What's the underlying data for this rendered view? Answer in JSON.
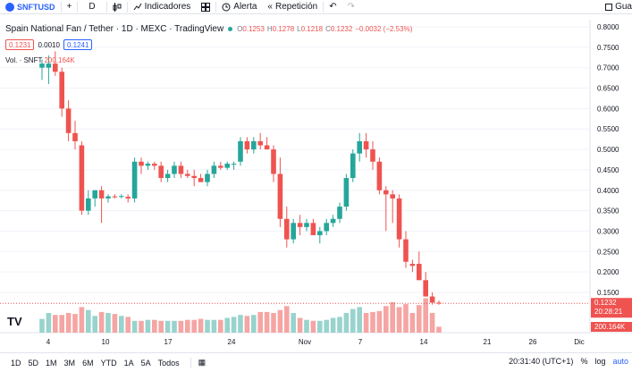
{
  "toolbar": {
    "symbol": "SNFTUSD",
    "interval": "D",
    "indicators_label": "Indicadores",
    "alert_label": "Alerta",
    "replay_label": "Repetición",
    "save_label": "Gua"
  },
  "legend": {
    "title": "Spain National Fan / Tether · 1D · MEXC · TradingView",
    "open_key": "O",
    "open": "0.1253",
    "high_key": "H",
    "high": "0.1278",
    "low_key": "L",
    "low": "0.1218",
    "close_key": "C",
    "close": "0.1232",
    "change": "−0.0032 (−2.53%)",
    "bid": "0.1231",
    "spread": "0.0010",
    "ask": "0.1241",
    "vol_label": "Vol. · SNFT",
    "vol_value": "200.164K"
  },
  "price_axis": {
    "ticks": [
      "0.8000",
      "0.7500",
      "0.7000",
      "0.6500",
      "0.6000",
      "0.5500",
      "0.5000",
      "0.4500",
      "0.4000",
      "0.3500",
      "0.3000",
      "0.2500",
      "0.2000",
      "0.1500"
    ],
    "last_price": "0.1232",
    "countdown": "20:28:21",
    "volume_badge": "200.164K"
  },
  "time_axis": {
    "labels": [
      "4",
      "10",
      "17",
      "24",
      "Nov",
      "7",
      "14",
      "21",
      "26",
      "Dic"
    ]
  },
  "bottombar": {
    "timeframes": [
      "1D",
      "5D",
      "1M",
      "3M",
      "6M",
      "YTD",
      "1A",
      "5A",
      "Todos"
    ],
    "clock": "20:31:40 (UTC+1)",
    "percent": "%",
    "log": "log",
    "auto": "auto"
  },
  "colors": {
    "up": "#26a69a",
    "down": "#ef5350",
    "vol_up": "#98d3cd",
    "vol_down": "#f5a5a3",
    "accent": "#2962ff"
  },
  "chart_data": {
    "type": "candlestick",
    "ylim": [
      0.12,
      0.8
    ],
    "candles": [
      {
        "o": 0.7,
        "h": 0.72,
        "l": 0.67,
        "c": 0.71
      },
      {
        "o": 0.7,
        "h": 0.73,
        "l": 0.66,
        "c": 0.71
      },
      {
        "o": 0.71,
        "h": 0.74,
        "l": 0.68,
        "c": 0.69
      },
      {
        "o": 0.69,
        "h": 0.7,
        "l": 0.58,
        "c": 0.6
      },
      {
        "o": 0.6,
        "h": 0.62,
        "l": 0.52,
        "c": 0.54
      },
      {
        "o": 0.54,
        "h": 0.57,
        "l": 0.5,
        "c": 0.52
      },
      {
        "o": 0.51,
        "h": 0.52,
        "l": 0.34,
        "c": 0.35
      },
      {
        "o": 0.35,
        "h": 0.4,
        "l": 0.34,
        "c": 0.38
      },
      {
        "o": 0.38,
        "h": 0.4,
        "l": 0.36,
        "c": 0.4
      },
      {
        "o": 0.4,
        "h": 0.41,
        "l": 0.32,
        "c": 0.38
      },
      {
        "o": 0.38,
        "h": 0.39,
        "l": 0.37,
        "c": 0.385
      },
      {
        "o": 0.385,
        "h": 0.39,
        "l": 0.38,
        "c": 0.384
      },
      {
        "o": 0.384,
        "h": 0.39,
        "l": 0.38,
        "c": 0.386
      },
      {
        "o": 0.384,
        "h": 0.39,
        "l": 0.37,
        "c": 0.38
      },
      {
        "o": 0.38,
        "h": 0.48,
        "l": 0.37,
        "c": 0.47
      },
      {
        "o": 0.47,
        "h": 0.48,
        "l": 0.44,
        "c": 0.46
      },
      {
        "o": 0.46,
        "h": 0.47,
        "l": 0.45,
        "c": 0.465
      },
      {
        "o": 0.465,
        "h": 0.47,
        "l": 0.45,
        "c": 0.46
      },
      {
        "o": 0.46,
        "h": 0.47,
        "l": 0.42,
        "c": 0.43
      },
      {
        "o": 0.43,
        "h": 0.45,
        "l": 0.42,
        "c": 0.44
      },
      {
        "o": 0.44,
        "h": 0.47,
        "l": 0.43,
        "c": 0.46
      },
      {
        "o": 0.46,
        "h": 0.47,
        "l": 0.43,
        "c": 0.44
      },
      {
        "o": 0.44,
        "h": 0.45,
        "l": 0.43,
        "c": 0.435
      },
      {
        "o": 0.435,
        "h": 0.45,
        "l": 0.41,
        "c": 0.43
      },
      {
        "o": 0.43,
        "h": 0.44,
        "l": 0.42,
        "c": 0.42
      },
      {
        "o": 0.42,
        "h": 0.45,
        "l": 0.41,
        "c": 0.44
      },
      {
        "o": 0.44,
        "h": 0.47,
        "l": 0.43,
        "c": 0.46
      },
      {
        "o": 0.46,
        "h": 0.47,
        "l": 0.45,
        "c": 0.455
      },
      {
        "o": 0.455,
        "h": 0.47,
        "l": 0.45,
        "c": 0.465
      },
      {
        "o": 0.465,
        "h": 0.47,
        "l": 0.45,
        "c": 0.465
      },
      {
        "o": 0.47,
        "h": 0.53,
        "l": 0.46,
        "c": 0.52
      },
      {
        "o": 0.52,
        "h": 0.53,
        "l": 0.49,
        "c": 0.5
      },
      {
        "o": 0.5,
        "h": 0.53,
        "l": 0.49,
        "c": 0.52
      },
      {
        "o": 0.52,
        "h": 0.54,
        "l": 0.5,
        "c": 0.51
      },
      {
        "o": 0.51,
        "h": 0.53,
        "l": 0.5,
        "c": 0.5
      },
      {
        "o": 0.5,
        "h": 0.51,
        "l": 0.42,
        "c": 0.44
      },
      {
        "o": 0.44,
        "h": 0.48,
        "l": 0.31,
        "c": 0.33
      },
      {
        "o": 0.33,
        "h": 0.36,
        "l": 0.26,
        "c": 0.28
      },
      {
        "o": 0.28,
        "h": 0.33,
        "l": 0.27,
        "c": 0.32
      },
      {
        "o": 0.32,
        "h": 0.34,
        "l": 0.29,
        "c": 0.31
      },
      {
        "o": 0.31,
        "h": 0.33,
        "l": 0.3,
        "c": 0.32
      },
      {
        "o": 0.32,
        "h": 0.33,
        "l": 0.29,
        "c": 0.29
      },
      {
        "o": 0.29,
        "h": 0.31,
        "l": 0.27,
        "c": 0.3
      },
      {
        "o": 0.3,
        "h": 0.33,
        "l": 0.29,
        "c": 0.32
      },
      {
        "o": 0.32,
        "h": 0.34,
        "l": 0.31,
        "c": 0.33
      },
      {
        "o": 0.33,
        "h": 0.37,
        "l": 0.32,
        "c": 0.36
      },
      {
        "o": 0.36,
        "h": 0.44,
        "l": 0.35,
        "c": 0.43
      },
      {
        "o": 0.43,
        "h": 0.5,
        "l": 0.42,
        "c": 0.49
      },
      {
        "o": 0.49,
        "h": 0.54,
        "l": 0.47,
        "c": 0.52
      },
      {
        "o": 0.52,
        "h": 0.54,
        "l": 0.48,
        "c": 0.5
      },
      {
        "o": 0.5,
        "h": 0.52,
        "l": 0.45,
        "c": 0.47
      },
      {
        "o": 0.47,
        "h": 0.48,
        "l": 0.39,
        "c": 0.4
      },
      {
        "o": 0.4,
        "h": 0.41,
        "l": 0.3,
        "c": 0.39
      },
      {
        "o": 0.39,
        "h": 0.4,
        "l": 0.32,
        "c": 0.38
      },
      {
        "o": 0.38,
        "h": 0.39,
        "l": 0.26,
        "c": 0.28
      },
      {
        "o": 0.28,
        "h": 0.3,
        "l": 0.21,
        "c": 0.225
      },
      {
        "o": 0.22,
        "h": 0.23,
        "l": 0.2,
        "c": 0.215
      },
      {
        "o": 0.22,
        "h": 0.25,
        "l": 0.18,
        "c": 0.18
      },
      {
        "o": 0.18,
        "h": 0.2,
        "l": 0.14,
        "c": 0.14
      },
      {
        "o": 0.14,
        "h": 0.15,
        "l": 0.12,
        "c": 0.125
      },
      {
        "o": 0.125,
        "h": 0.13,
        "l": 0.12,
        "c": 0.123
      }
    ],
    "volume": [
      0.28,
      0.4,
      0.36,
      0.36,
      0.4,
      0.38,
      0.52,
      0.46,
      0.34,
      0.42,
      0.4,
      0.38,
      0.34,
      0.32,
      0.24,
      0.24,
      0.26,
      0.26,
      0.24,
      0.24,
      0.24,
      0.24,
      0.26,
      0.26,
      0.28,
      0.26,
      0.26,
      0.26,
      0.3,
      0.32,
      0.36,
      0.34,
      0.36,
      0.42,
      0.42,
      0.4,
      0.46,
      0.54,
      0.4,
      0.3,
      0.26,
      0.24,
      0.24,
      0.26,
      0.3,
      0.32,
      0.4,
      0.48,
      0.52,
      0.4,
      0.42,
      0.44,
      0.54,
      0.62,
      0.52,
      0.58,
      0.4,
      0.56,
      0.7,
      0.4,
      0.12
    ]
  }
}
